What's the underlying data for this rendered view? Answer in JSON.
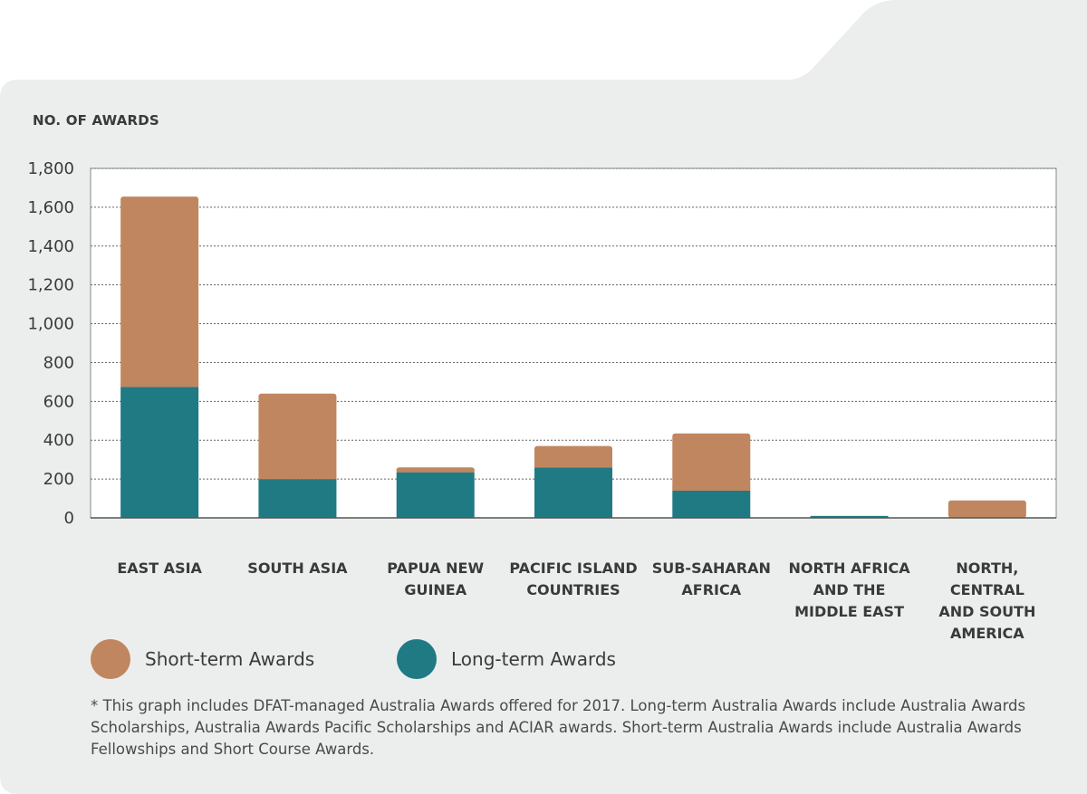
{
  "colors": {
    "short_term": "#c08660",
    "long_term": "#1f7a84",
    "background": "#eceeed",
    "grid": "#666666"
  },
  "footnote": "* This graph includes DFAT-managed Australia Awards offered for 2017. Long-term Australia Awards include Australia Awards Scholarships, Australia Awards Pacific Scholarships and ACIAR awards. Short-term Australia Awards include Australia Awards Fellowships and Short Course Awards.",
  "chart_data": {
    "type": "bar",
    "stacked": true,
    "ylabel": "NO. OF AWARDS",
    "ylim": [
      0,
      1800
    ],
    "yticks": [
      "0",
      "200",
      "400",
      "600",
      "800",
      "1,000",
      "1,200",
      "1,400",
      "1,600",
      "1,800"
    ],
    "grid": true,
    "legend_position": "bottom-left",
    "categories": [
      "EAST ASIA",
      "SOUTH ASIA",
      "PAPUA NEW\nGUINEA",
      "PACIFIC ISLAND\nCOUNTRIES",
      "SUB-SAHARAN\nAFRICA",
      "NORTH AFRICA\nAND THE\nMIDDLE EAST",
      "NORTH, CENTRAL\nAND SOUTH\nAMERICA"
    ],
    "series": [
      {
        "name": "Long-term Awards",
        "values": [
          675,
          200,
          235,
          260,
          140,
          10,
          0
        ]
      },
      {
        "name": "Short-term Awards",
        "values": [
          980,
          440,
          25,
          110,
          295,
          0,
          90
        ]
      }
    ]
  }
}
